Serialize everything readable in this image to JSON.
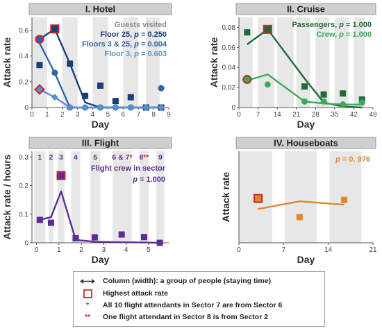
{
  "colors": {
    "hotel_floor25": "#1b3d78",
    "hotel_floor3_25": "#2e64a8",
    "hotel_floor3": "#5a90cc",
    "cruise_passengers": "#1f6a38",
    "cruise_crew": "#3aaa58",
    "flight_crew": "#5b2d91",
    "houseboats": "#e2842b",
    "highlight_edge": "#c82828",
    "title_bar": "#cfcfcf",
    "column_shade": "#e7e7e7"
  },
  "chart_data": [
    {
      "id": "hotel",
      "type": "line",
      "title": "I. Hotel",
      "xlabel": "Day",
      "ylabel": "Attack rate",
      "xlim": [
        0,
        9
      ],
      "ylim": [
        0,
        0.7
      ],
      "xticks": [
        "0",
        "1",
        "2",
        "3",
        "4",
        "5",
        "6",
        "7",
        "8",
        "9"
      ],
      "yticks": [
        "0",
        "0.2",
        "0.4",
        "0.6"
      ],
      "columns": [
        [
          0,
          1
        ],
        [
          2,
          3
        ],
        [
          4,
          5
        ],
        [
          6,
          7
        ],
        [
          7.5,
          8.4
        ]
      ],
      "annotations": [
        {
          "text": "Guests visited",
          "color": "#8c8c8c"
        },
        {
          "text": "Floor 25, p = 0.250",
          "color": "#1b3d78"
        },
        {
          "text": "Floors 3 & 25, p = 0.004",
          "color": "#2e64a8"
        },
        {
          "text": "Floor 3, p = 0.603",
          "color": "#5a90cc"
        }
      ],
      "series": [
        {
          "name": "Floor 25",
          "color": "#1b3d78",
          "marker": "square",
          "points": [
            [
              0.5,
              0.33
            ],
            [
              1.5,
              0.61
            ],
            [
              2.5,
              0.34
            ],
            [
              3.5,
              0.09
            ],
            [
              4.5,
              0.17
            ],
            [
              5.5,
              0.05
            ],
            [
              6.5,
              0.08
            ],
            [
              7.5,
              0.0
            ],
            [
              8.5,
              0.0
            ]
          ],
          "line": [
            [
              0.5,
              0.53
            ],
            [
              1.5,
              0.61
            ],
            [
              2.5,
              0.34
            ],
            [
              3.5,
              0.04
            ],
            [
              4.5,
              0.0
            ],
            [
              8.5,
              0.0
            ]
          ],
          "highlight_index": 1
        },
        {
          "name": "Floors 3 & 25",
          "color": "#2e64a8",
          "marker": "circle",
          "points": [
            [
              0.5,
              0.53
            ],
            [
              1.5,
              0.27
            ],
            [
              2.5,
              0.0
            ],
            [
              3.5,
              0.0
            ],
            [
              4.5,
              0.0
            ],
            [
              5.5,
              0.0
            ],
            [
              6.5,
              0.0
            ],
            [
              7.5,
              0.0
            ],
            [
              8.5,
              0.15
            ]
          ],
          "line": [
            [
              0.5,
              0.5
            ],
            [
              1.5,
              0.27
            ],
            [
              2.5,
              0.0
            ],
            [
              8.5,
              0.0
            ]
          ],
          "highlight_index": 0
        },
        {
          "name": "Floor 3",
          "color": "#5a90cc",
          "marker": "diamond",
          "points": [
            [
              0.5,
              0.14
            ],
            [
              1.5,
              0.08
            ],
            [
              2.5,
              0.0
            ],
            [
              3.5,
              0.0
            ],
            [
              4.5,
              0.0
            ],
            [
              5.5,
              0.0
            ],
            [
              6.5,
              0.0
            ],
            [
              7.5,
              0.0
            ],
            [
              8.5,
              0.0
            ]
          ],
          "line": [
            [
              0.5,
              0.14
            ],
            [
              1.5,
              0.08
            ],
            [
              2.5,
              0.0
            ],
            [
              8.5,
              0.0
            ]
          ],
          "highlight_index": 0
        }
      ]
    },
    {
      "id": "cruise",
      "type": "line",
      "title": "II. Cruise",
      "xlabel": "Day",
      "ylabel": "Attack rate",
      "xlim": [
        0,
        49
      ],
      "ylim": [
        0,
        0.09
      ],
      "xticks": [
        "0",
        "7",
        "14",
        "21",
        "28",
        "35",
        "42",
        "49"
      ],
      "yticks": [
        "0",
        "0.02",
        "0.04",
        "0.06",
        "0.08"
      ],
      "columns": [
        [
          0,
          5
        ],
        [
          7,
          13
        ],
        [
          14,
          20
        ],
        [
          21,
          26
        ],
        [
          28,
          33
        ],
        [
          35,
          40
        ],
        [
          42,
          46
        ]
      ],
      "annotations": [
        {
          "text": "Passengers, p = 1.000",
          "color": "#1f6a38"
        },
        {
          "text": "Crew, p = 1.000",
          "color": "#3aaa58"
        }
      ],
      "series": [
        {
          "name": "Passengers",
          "color": "#1f6a38",
          "marker": "square",
          "points": [
            [
              3,
              0.075
            ],
            [
              10.5,
              0.078
            ],
            [
              24,
              0.021
            ],
            [
              31,
              0.013
            ],
            [
              38,
              0.014
            ],
            [
              45,
              0.008
            ]
          ],
          "line": [
            [
              3,
              0.063
            ],
            [
              10.5,
              0.078
            ],
            [
              24,
              0.029
            ],
            [
              31,
              0.005
            ],
            [
              38,
              0.001
            ],
            [
              45,
              0.0
            ]
          ],
          "highlight_index": 1
        },
        {
          "name": "Crew",
          "color": "#3aaa58",
          "marker": "circle",
          "points": [
            [
              3,
              0.028
            ],
            [
              10.5,
              0.023
            ],
            [
              24,
              0.006
            ],
            [
              31,
              0.006
            ],
            [
              38,
              0.003
            ],
            [
              45,
              0.005
            ]
          ],
          "line": [
            [
              3,
              0.027
            ],
            [
              10.5,
              0.033
            ],
            [
              24,
              0.006
            ],
            [
              31,
              0.004
            ],
            [
              38,
              0.003
            ],
            [
              45,
              0.003
            ]
          ],
          "highlight_index": 0
        }
      ]
    },
    {
      "id": "flight",
      "type": "line",
      "title": "III. Flight",
      "xlabel": "Day",
      "ylabel": "Attack rate / hours",
      "xlim": [
        -0.2,
        5.9
      ],
      "ylim": [
        0,
        0.32
      ],
      "xticks": [
        "0",
        "1",
        "2",
        "3",
        "4",
        "5"
      ],
      "xtick_values": [
        0,
        1,
        2,
        3,
        4,
        5
      ],
      "yticks": [
        "0",
        "0.1",
        "0.2",
        "0.3"
      ],
      "columns": [
        [
          -0.1,
          0.4
        ],
        [
          0.55,
          0.75
        ],
        [
          0.95,
          1.25
        ],
        [
          1.55,
          1.95
        ],
        [
          2.4,
          2.85
        ],
        [
          3.4,
          4.25
        ],
        [
          4.6,
          5.0
        ],
        [
          5.35,
          5.7
        ]
      ],
      "sector_labels": [
        "1",
        "2",
        "3",
        "4",
        "5",
        "6 & 7*",
        "8**",
        "9"
      ],
      "annotations": [
        {
          "text": "Flight crew in sector",
          "color": "#5b2d91"
        },
        {
          "text": "p = 1.000",
          "color": "#5b2d91"
        }
      ],
      "series": [
        {
          "name": "Flight crew in sector",
          "color": "#5b2d91",
          "marker": "square",
          "points": [
            [
              0.15,
              0.08
            ],
            [
              0.65,
              0.07
            ],
            [
              1.1,
              0.235
            ],
            [
              1.75,
              0.016
            ],
            [
              2.6,
              0.019
            ],
            [
              3.8,
              0.029
            ],
            [
              4.8,
              0.02
            ],
            [
              5.5,
              0.0
            ]
          ],
          "line": [
            [
              0.15,
              0.08
            ],
            [
              0.65,
              0.09
            ],
            [
              1.1,
              0.18
            ],
            [
              1.75,
              0.01
            ],
            [
              2.6,
              0.004
            ],
            [
              3.8,
              0.002
            ],
            [
              4.8,
              0.001
            ],
            [
              5.5,
              0.0
            ]
          ],
          "highlight_index": 2
        }
      ]
    },
    {
      "id": "houseboats",
      "type": "line",
      "title": "IV. Houseboats",
      "xlabel": "Day",
      "ylabel": "Attack rate",
      "xlim": [
        0,
        21
      ],
      "ylim": [
        0,
        0.32
      ],
      "xticks": [
        "0",
        "7",
        "14",
        "21"
      ],
      "yticks": [],
      "columns": [
        [
          0,
          5.2
        ],
        [
          7.2,
          12.2
        ],
        [
          14.2,
          19.2
        ]
      ],
      "annotations": [
        {
          "text": "p = 0. 976",
          "color": "#e2842b"
        }
      ],
      "series": [
        {
          "name": "Houseboats",
          "color": "#e2842b",
          "marker": "square",
          "points": [
            [
              3,
              0.155
            ],
            [
              9.5,
              0.09
            ],
            [
              16.5,
              0.15
            ]
          ],
          "line": [
            [
              3,
              0.118
            ],
            [
              9.5,
              0.145
            ],
            [
              16.5,
              0.133
            ]
          ],
          "highlight_index": 0
        }
      ]
    }
  ],
  "legend": {
    "items": [
      {
        "symbol": "double-arrow-icon",
        "text": "Column (width): a group of people (staying time)"
      },
      {
        "symbol": "highlight-square-icon",
        "text": "Highest attack rate"
      },
      {
        "symbol": "*",
        "text": "All 10 flight attendants in Sector 7 are from Sector 6"
      },
      {
        "symbol": "**",
        "text": "One flight attendant in Sector 8 is from Sector 2"
      }
    ]
  }
}
